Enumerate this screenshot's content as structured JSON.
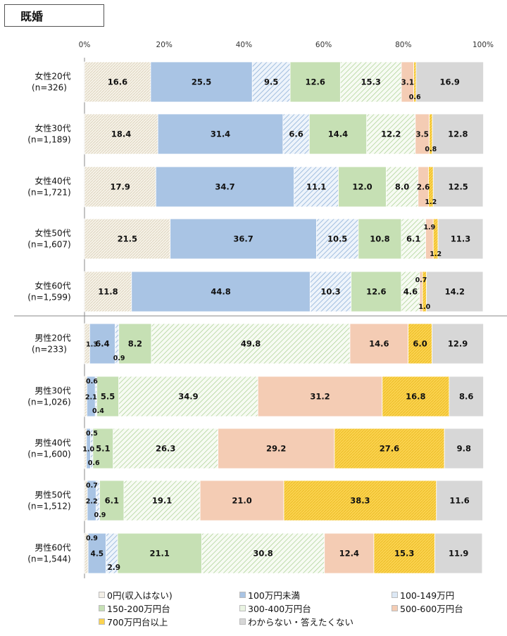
{
  "header": {
    "title": "既婚"
  },
  "chart_data": {
    "type": "bar",
    "orientation": "horizontal",
    "stacked": "100%",
    "xlim": [
      0,
      100
    ],
    "x_ticks": [
      "0%",
      "20%",
      "40%",
      "60%",
      "80%",
      "100%"
    ],
    "categories": [
      [
        "女性20代",
        "(n=326)"
      ],
      [
        "女性30代",
        "(n=1,189)"
      ],
      [
        "女性40代",
        "(n=1,721)"
      ],
      [
        "女性50代",
        "(n=1,607)"
      ],
      [
        "女性60代",
        "(n=1,599)"
      ],
      [
        "男性20代",
        "(n=233)"
      ],
      [
        "男性30代",
        "(n=1,026)"
      ],
      [
        "男性40代",
        "(n=1,600)"
      ],
      [
        "男性50代",
        "(n=1,512)"
      ],
      [
        "男性60代",
        "(n=1,544)"
      ]
    ],
    "series": [
      {
        "name": "0円(収入はない)",
        "color": "#f3efe6",
        "pattern": "dots",
        "values": [
          16.6,
          18.4,
          17.9,
          21.5,
          11.8,
          1.3,
          0.6,
          0.5,
          0.7,
          0.9
        ]
      },
      {
        "name": "100万円未満",
        "color": "#a9c4e4",
        "pattern": "solid",
        "values": [
          25.5,
          31.4,
          34.7,
          36.7,
          44.8,
          6.4,
          2.1,
          1.0,
          2.2,
          4.5
        ]
      },
      {
        "name": "100-149万円",
        "color": "#dce8f5",
        "pattern": "hatch-blue",
        "values": [
          9.5,
          6.6,
          11.1,
          10.5,
          10.3,
          0.9,
          0.4,
          0.6,
          0.9,
          2.9
        ]
      },
      {
        "name": "150-200万円台",
        "color": "#c6e0b4",
        "pattern": "solid",
        "values": [
          12.6,
          14.4,
          12.0,
          10.8,
          12.6,
          8.2,
          5.5,
          5.1,
          6.1,
          21.1
        ]
      },
      {
        "name": "300-400万円台",
        "color": "#eaf4e2",
        "pattern": "hatch-green",
        "values": [
          15.3,
          12.2,
          8.0,
          6.1,
          4.6,
          49.8,
          34.9,
          26.3,
          19.1,
          30.8
        ]
      },
      {
        "name": "500-600万円台",
        "color": "#f4ccb4",
        "pattern": "solid",
        "values": [
          3.1,
          3.5,
          2.6,
          1.9,
          0.7,
          14.6,
          31.2,
          29.2,
          21.0,
          12.4
        ]
      },
      {
        "name": "700万円台以上",
        "color": "#fbd34f",
        "pattern": "dots-yellow",
        "values": [
          0.6,
          0.8,
          1.2,
          1.2,
          1.0,
          6.0,
          16.8,
          27.6,
          38.3,
          15.3
        ]
      },
      {
        "name": "わからない・答えたくない",
        "color": "#d7d7d7",
        "pattern": "solid",
        "values": [
          16.9,
          12.8,
          12.5,
          11.3,
          14.2,
          12.9,
          8.6,
          9.8,
          11.6,
          11.9
        ]
      }
    ],
    "legend_position": "bottom",
    "grid": false
  }
}
